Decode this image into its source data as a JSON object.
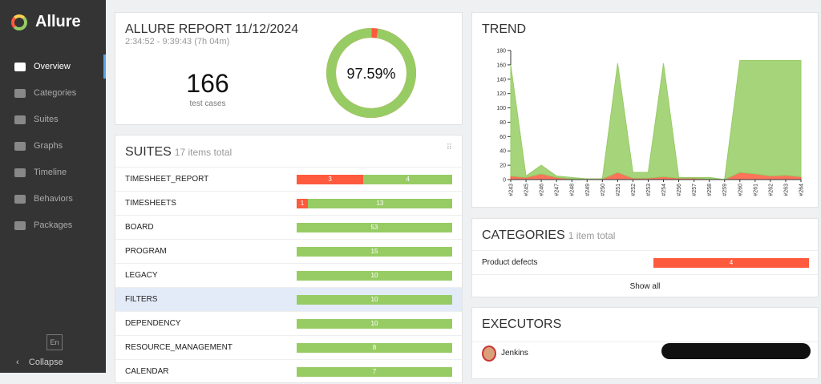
{
  "sidebar": {
    "brand": "Allure",
    "nav": [
      "Overview",
      "Categories",
      "Suites",
      "Graphs",
      "Timeline",
      "Behaviors",
      "Packages"
    ],
    "language": "En",
    "collapse": "Collapse"
  },
  "summary": {
    "title": "ALLURE REPORT 11/12/2024",
    "time": "2:34:52 - 9:39:43 (7h 04m)",
    "count": 166,
    "count_label": "test cases",
    "percent": {
      "value": 97.59,
      "label": "97.59%"
    }
  },
  "suites": {
    "title": "SUITES",
    "subtitle": "17 items total",
    "rows": [
      {
        "name": "TIMESHEET_REPORT",
        "failed": 3,
        "passed": 4
      },
      {
        "name": "TIMESHEETS",
        "failed": 1,
        "passed": 13
      },
      {
        "name": "BOARD",
        "passed": 53
      },
      {
        "name": "PROGRAM",
        "passed": 15
      },
      {
        "name": "LEGACY",
        "passed": 10
      },
      {
        "name": "FILTERS",
        "passed": 10
      },
      {
        "name": "DEPENDENCY",
        "passed": 10
      },
      {
        "name": "RESOURCE_MANAGEMENT",
        "passed": 8
      },
      {
        "name": "CALENDAR",
        "passed": 7
      }
    ]
  },
  "trend": {
    "title": "TREND",
    "type": "area",
    "categories": [
      "#243",
      "#245",
      "#246",
      "#247",
      "#248",
      "#249",
      "#250",
      "#251",
      "#252",
      "#253",
      "#254",
      "#256",
      "#257",
      "#258",
      "#259",
      "#260",
      "#261",
      "#262",
      "#263",
      "#264"
    ],
    "series": [
      {
        "color": "#fd5a3e",
        "values": [
          5,
          3,
          8,
          3,
          1,
          1,
          1,
          10,
          2,
          2,
          4,
          2,
          2,
          1,
          0,
          10,
          8,
          5,
          6,
          4
        ]
      },
      {
        "color": "#97cc64",
        "values": [
          155,
          2,
          12,
          2,
          2,
          0,
          0,
          152,
          8,
          8,
          158,
          1,
          1,
          2,
          0,
          156,
          158,
          161,
          160,
          162
        ]
      }
    ],
    "ylim": [
      0,
      180
    ],
    "yticks": [
      0,
      20,
      40,
      60,
      80,
      100,
      120,
      140,
      160,
      180
    ]
  },
  "categories": {
    "title": "CATEGORIES",
    "subtitle": "1 item total",
    "rows": [
      {
        "name": "Product defects",
        "failed": 4
      }
    ],
    "show_all": "Show all"
  },
  "executors": {
    "title": "EXECUTORS",
    "rows": [
      "Jenkins"
    ]
  }
}
